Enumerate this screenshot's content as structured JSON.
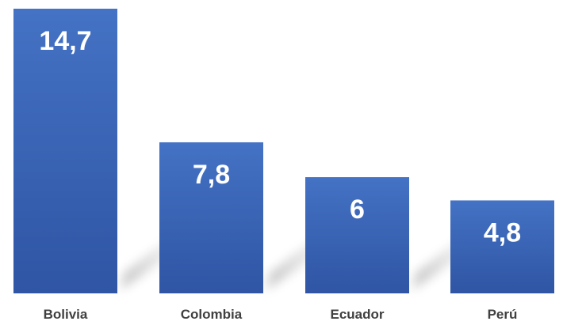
{
  "chart_data": {
    "type": "bar",
    "categories": [
      "Bolivia",
      "Colombia",
      "Ecuador",
      "Perú"
    ],
    "values": [
      14.7,
      7.8,
      6,
      4.8
    ],
    "data_labels": [
      "14,7",
      "7,8",
      "6",
      "4,8"
    ],
    "title": "",
    "xlabel": "",
    "ylabel": "",
    "ylim": [
      0,
      14.7
    ],
    "grid": false,
    "legend": "none",
    "colors": {
      "bar_top": "#4472C4",
      "bar_bottom": "#2F55A4",
      "label_text": "#FFFFFF",
      "category_text": "#404040",
      "shadow": "#7F7F7F"
    }
  }
}
